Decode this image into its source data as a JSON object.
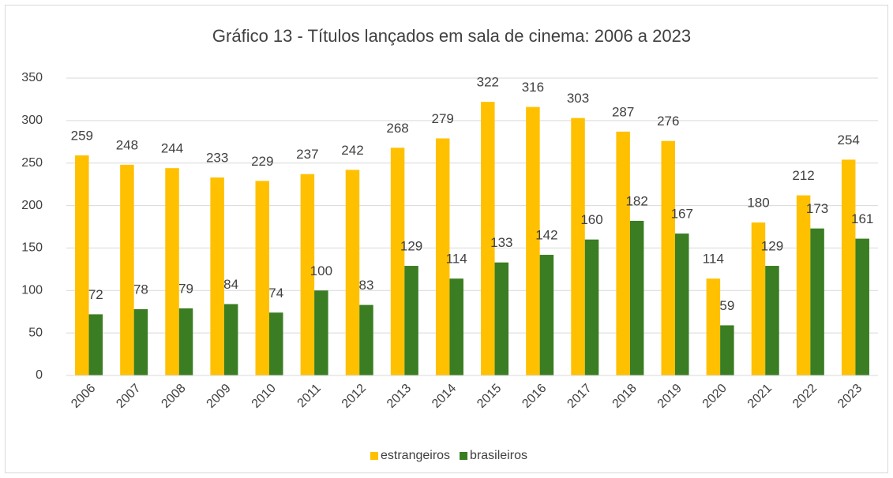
{
  "chart_data": {
    "type": "bar",
    "title": "Gráfico 13 - Títulos lançados em sala de cinema: 2006 a 2023",
    "categories": [
      "2006",
      "2007",
      "2008",
      "2009",
      "2010",
      "2011",
      "2012",
      "2013",
      "2014",
      "2015",
      "2016",
      "2017",
      "2018",
      "2019",
      "2020",
      "2021",
      "2022",
      "2023"
    ],
    "series": [
      {
        "name": "estrangeiros",
        "color": "#ffc000",
        "values": [
          259,
          248,
          244,
          233,
          229,
          237,
          242,
          268,
          279,
          322,
          316,
          303,
          287,
          276,
          114,
          180,
          212,
          254
        ]
      },
      {
        "name": "brasileiros",
        "color": "#3a7d22",
        "values": [
          72,
          78,
          79,
          84,
          74,
          100,
          83,
          129,
          114,
          133,
          142,
          160,
          182,
          167,
          59,
          129,
          173,
          161
        ]
      }
    ],
    "ylim": [
      0,
      350
    ],
    "yticks": [
      0,
      50,
      100,
      150,
      200,
      250,
      300,
      350
    ],
    "grid": true,
    "legend": "bottom"
  }
}
